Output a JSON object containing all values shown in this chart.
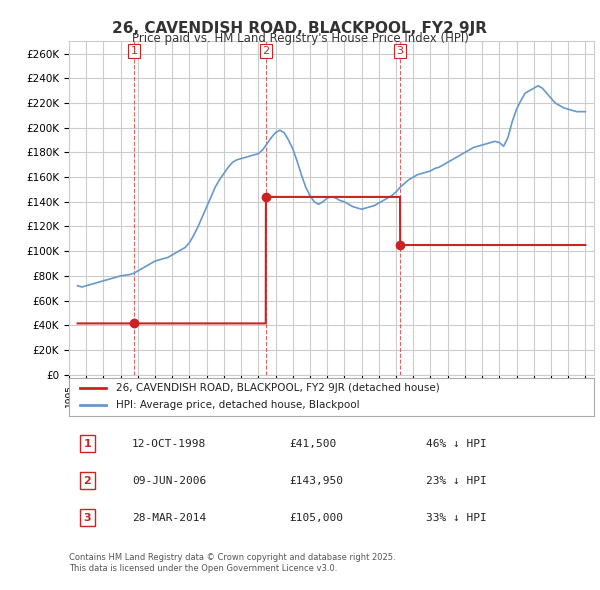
{
  "title": "26, CAVENDISH ROAD, BLACKPOOL, FY2 9JR",
  "subtitle": "Price paid vs. HM Land Registry's House Price Index (HPI)",
  "ylim": [
    0,
    270000
  ],
  "yticks": [
    0,
    20000,
    40000,
    60000,
    80000,
    100000,
    120000,
    140000,
    160000,
    180000,
    200000,
    220000,
    240000,
    260000
  ],
  "hpi_color": "#6699cc",
  "sale_color": "#cc2222",
  "vline_color": "#cc2222",
  "background_color": "#ffffff",
  "grid_color": "#cccccc",
  "legend_label_sale": "26, CAVENDISH ROAD, BLACKPOOL, FY2 9JR (detached house)",
  "legend_label_hpi": "HPI: Average price, detached house, Blackpool",
  "sale_dates": [
    1998.78,
    2006.44,
    2014.24
  ],
  "sale_prices": [
    41500,
    143950,
    105000
  ],
  "sale_labels": [
    "1",
    "2",
    "3"
  ],
  "vline_dates": [
    1998.78,
    2006.44,
    2014.24
  ],
  "table_data": [
    [
      "1",
      "12-OCT-1998",
      "£41,500",
      "46% ↓ HPI"
    ],
    [
      "2",
      "09-JUN-2006",
      "£143,950",
      "23% ↓ HPI"
    ],
    [
      "3",
      "28-MAR-2014",
      "£105,000",
      "33% ↓ HPI"
    ]
  ],
  "footnote": "Contains HM Land Registry data © Crown copyright and database right 2025.\nThis data is licensed under the Open Government Licence v3.0.",
  "hpi_data_x": [
    1995.5,
    1995.75,
    1996.0,
    1996.25,
    1996.5,
    1996.75,
    1997.0,
    1997.25,
    1997.5,
    1997.75,
    1998.0,
    1998.25,
    1998.5,
    1998.75,
    1999.0,
    1999.25,
    1999.5,
    1999.75,
    2000.0,
    2000.25,
    2000.5,
    2000.75,
    2001.0,
    2001.25,
    2001.5,
    2001.75,
    2002.0,
    2002.25,
    2002.5,
    2002.75,
    2003.0,
    2003.25,
    2003.5,
    2003.75,
    2004.0,
    2004.25,
    2004.5,
    2004.75,
    2005.0,
    2005.25,
    2005.5,
    2005.75,
    2006.0,
    2006.25,
    2006.5,
    2006.75,
    2007.0,
    2007.25,
    2007.5,
    2007.75,
    2008.0,
    2008.25,
    2008.5,
    2008.75,
    2009.0,
    2009.25,
    2009.5,
    2009.75,
    2010.0,
    2010.25,
    2010.5,
    2010.75,
    2011.0,
    2011.25,
    2011.5,
    2011.75,
    2012.0,
    2012.25,
    2012.5,
    2012.75,
    2013.0,
    2013.25,
    2013.5,
    2013.75,
    2014.0,
    2014.25,
    2014.5,
    2014.75,
    2015.0,
    2015.25,
    2015.5,
    2015.75,
    2016.0,
    2016.25,
    2016.5,
    2016.75,
    2017.0,
    2017.25,
    2017.5,
    2017.75,
    2018.0,
    2018.25,
    2018.5,
    2018.75,
    2019.0,
    2019.25,
    2019.5,
    2019.75,
    2020.0,
    2020.25,
    2020.5,
    2020.75,
    2021.0,
    2021.25,
    2021.5,
    2021.75,
    2022.0,
    2022.25,
    2022.5,
    2022.75,
    2023.0,
    2023.25,
    2023.5,
    2023.75,
    2024.0,
    2024.25,
    2024.5,
    2024.75,
    2025.0
  ],
  "hpi_data_y": [
    72000,
    71000,
    72000,
    73000,
    74000,
    75000,
    76000,
    77000,
    78000,
    79000,
    80000,
    80500,
    81000,
    82000,
    84000,
    86000,
    88000,
    90000,
    92000,
    93000,
    94000,
    95000,
    97000,
    99000,
    101000,
    103000,
    107000,
    113000,
    120000,
    128000,
    136000,
    144000,
    152000,
    158000,
    163000,
    168000,
    172000,
    174000,
    175000,
    176000,
    177000,
    178000,
    179000,
    182000,
    187000,
    192000,
    196000,
    198000,
    196000,
    190000,
    183000,
    173000,
    162000,
    152000,
    145000,
    140000,
    138000,
    140000,
    143000,
    144000,
    143000,
    141000,
    140000,
    138000,
    136000,
    135000,
    134000,
    135000,
    136000,
    137000,
    139000,
    141000,
    143000,
    145000,
    148000,
    152000,
    155000,
    158000,
    160000,
    162000,
    163000,
    164000,
    165000,
    167000,
    168000,
    170000,
    172000,
    174000,
    176000,
    178000,
    180000,
    182000,
    184000,
    185000,
    186000,
    187000,
    188000,
    189000,
    188000,
    185000,
    192000,
    205000,
    215000,
    222000,
    228000,
    230000,
    232000,
    234000,
    232000,
    228000,
    224000,
    220000,
    218000,
    216000,
    215000,
    214000,
    213000,
    213000,
    213000
  ],
  "sale_line_data": {
    "segments": [
      {
        "x": [
          1998.78,
          1998.78,
          2006.44
        ],
        "y": [
          41500,
          41500,
          143950
        ]
      },
      {
        "x": [
          2006.44,
          2006.44,
          2014.24
        ],
        "y": [
          143950,
          143950,
          105000
        ]
      },
      {
        "x": [
          2014.24,
          2025.0
        ],
        "y": [
          105000,
          105000
        ]
      }
    ]
  }
}
